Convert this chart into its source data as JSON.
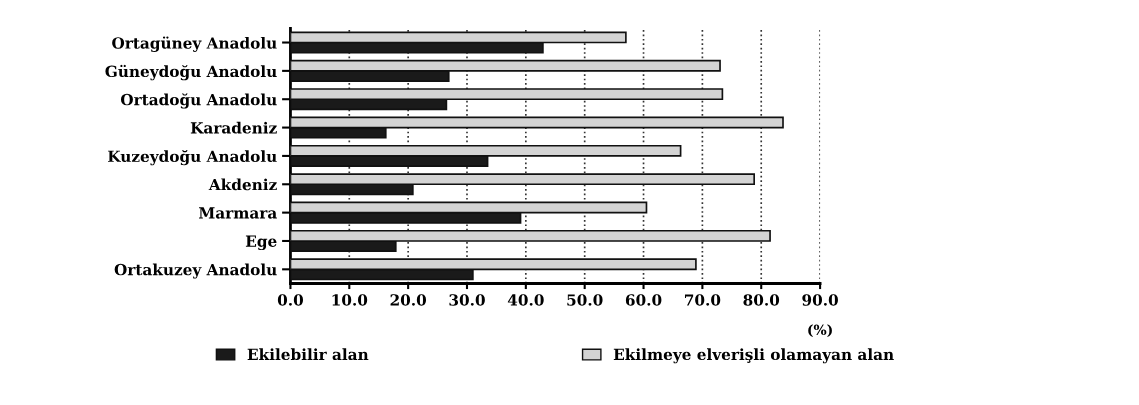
{
  "chart_data": {
    "type": "bar",
    "orientation": "horizontal",
    "xlabel": "(%)",
    "categories": [
      "Ortagüney Anadolu",
      "Güneydoğu Anadolu",
      "Ortadoğu Anadolu",
      "Karadeniz",
      "Kuzeydoğu Anadolu",
      "Akdeniz",
      "Marmara",
      "Ege",
      "Ortakuzey Anadolu"
    ],
    "series": [
      {
        "name": "Ekilebilir alan",
        "color": "#1a1a1a",
        "values": [
          42.9,
          26.9,
          26.5,
          16.2,
          33.5,
          20.8,
          39.1,
          17.9,
          31.0
        ]
      },
      {
        "name": "Ekilmeye elverişli olamayan alan",
        "color": "#d4d4d4",
        "values": [
          57.0,
          73.0,
          73.4,
          83.7,
          66.3,
          78.8,
          60.5,
          81.5,
          68.9
        ]
      }
    ],
    "xlim": [
      0,
      90
    ],
    "xticks": [
      {
        "value": 0,
        "label": "0.0"
      },
      {
        "value": 10,
        "label": "10.0"
      },
      {
        "value": 20,
        "label": "20.0"
      },
      {
        "value": 30,
        "label": "30.0"
      },
      {
        "value": 40,
        "label": "40.0"
      },
      {
        "value": 50,
        "label": "50.0"
      },
      {
        "value": 60,
        "label": "60.0"
      },
      {
        "value": 70,
        "label": "70.0"
      },
      {
        "value": 80,
        "label": "80.0"
      },
      {
        "value": 90,
        "label": "90.0"
      }
    ],
    "grid": "x",
    "legend": "bottom"
  }
}
